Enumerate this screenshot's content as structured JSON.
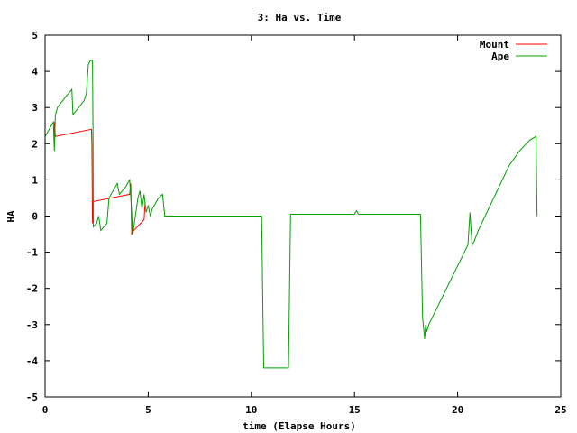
{
  "chart_data": {
    "type": "line",
    "title": "3: Ha vs. Time",
    "xlabel": "time (Elapse Hours)",
    "ylabel": "HA",
    "xlim": [
      0,
      25
    ],
    "ylim": [
      -5,
      5
    ],
    "xticks": [
      0,
      5,
      10,
      15,
      20,
      25
    ],
    "yticks": [
      -5,
      -4,
      -3,
      -2,
      -1,
      0,
      1,
      2,
      3,
      4,
      5
    ],
    "grid": false,
    "legend": "top-right",
    "series": [
      {
        "name": "Mount",
        "color": "#ff0000",
        "x": [
          0.45,
          0.45,
          0.5,
          2.25,
          2.27,
          2.3,
          2.32,
          4.1,
          4.15,
          4.2,
          4.3,
          4.8,
          4.85
        ],
        "y": [
          2.1,
          2.6,
          2.2,
          2.4,
          2.0,
          -0.2,
          0.4,
          0.6,
          0.9,
          -0.5,
          -0.4,
          -0.1,
          0.4
        ]
      },
      {
        "name": "Ape",
        "color": "#00a000",
        "x": [
          0.0,
          0.2,
          0.4,
          0.45,
          0.5,
          0.55,
          0.6,
          1.0,
          1.3,
          1.35,
          1.9,
          2.0,
          2.1,
          2.2,
          2.3,
          2.32,
          2.34,
          2.5,
          2.6,
          2.7,
          3.0,
          3.1,
          3.5,
          3.6,
          3.9,
          4.1,
          4.2,
          4.25,
          4.3,
          4.5,
          4.6,
          4.7,
          4.8,
          4.9,
          5.0,
          5.1,
          5.2,
          5.3,
          5.5,
          5.7,
          5.8,
          5.9,
          6.0,
          10.5,
          10.6,
          10.8,
          11.5,
          11.8,
          11.9,
          12.0,
          15.0,
          15.1,
          15.2,
          18.2,
          18.3,
          18.4,
          18.45,
          18.5,
          18.6,
          20.5,
          20.6,
          20.7,
          20.8,
          21.0,
          21.5,
          22.0,
          22.5,
          23.0,
          23.5,
          23.8,
          23.85
        ],
        "y": [
          2.2,
          2.4,
          2.6,
          1.8,
          2.8,
          2.9,
          3.0,
          3.3,
          3.5,
          2.8,
          3.2,
          3.4,
          4.2,
          4.3,
          4.3,
          2.5,
          -0.3,
          -0.2,
          0.0,
          -0.4,
          -0.2,
          0.5,
          0.9,
          0.6,
          0.8,
          1.0,
          0.1,
          -0.5,
          -0.3,
          0.5,
          0.7,
          0.2,
          0.6,
          0.1,
          0.3,
          0.0,
          0.2,
          0.3,
          0.5,
          0.6,
          0.0,
          0.0,
          0.0,
          0.0,
          -4.2,
          -4.2,
          -4.2,
          -4.2,
          0.05,
          0.05,
          0.05,
          0.15,
          0.05,
          0.05,
          -2.8,
          -3.4,
          -3.0,
          -3.2,
          -3.0,
          -0.8,
          0.1,
          -0.8,
          -0.7,
          -0.4,
          0.2,
          0.8,
          1.4,
          1.8,
          2.1,
          2.2,
          0.0
        ]
      }
    ]
  }
}
